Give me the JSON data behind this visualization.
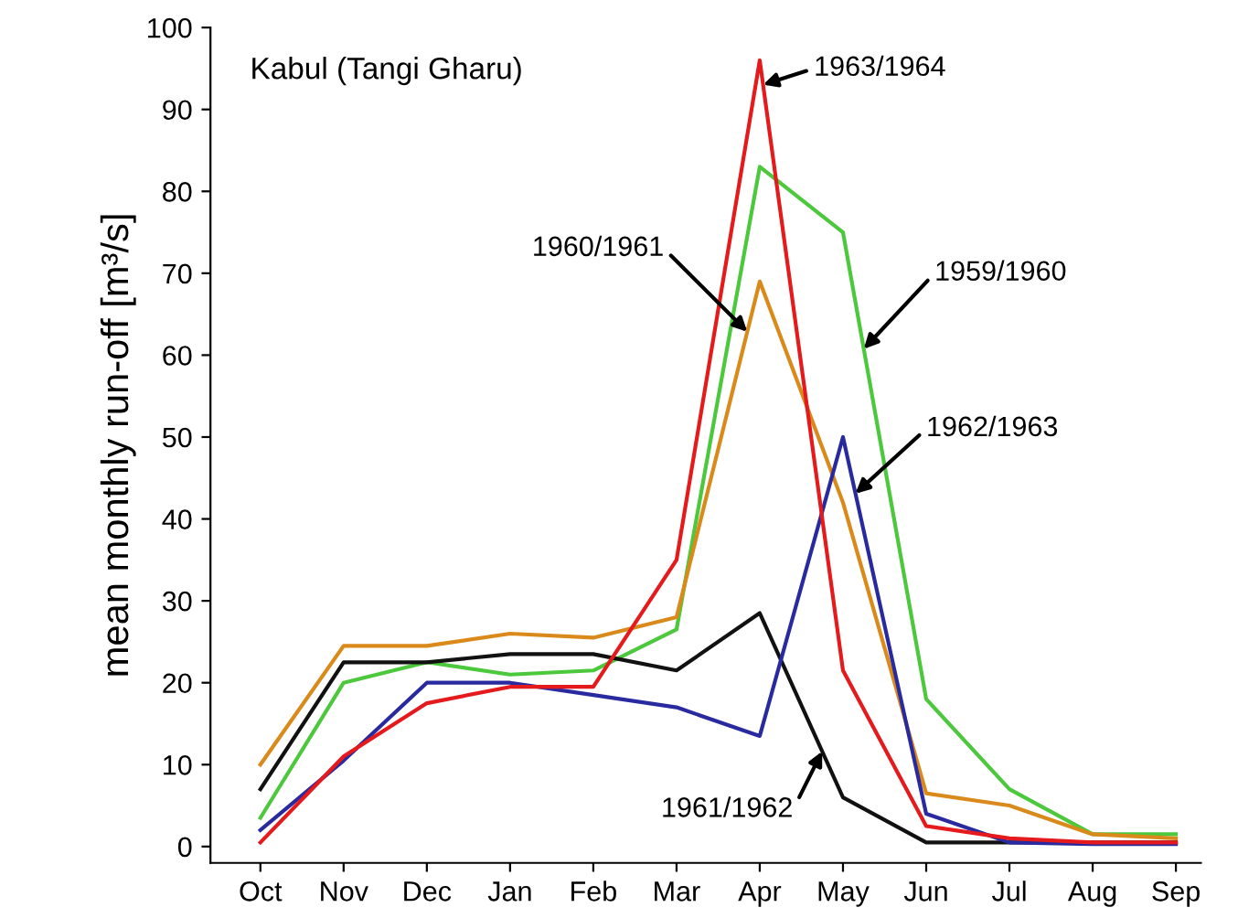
{
  "chart_data": {
    "type": "line",
    "title": "Kabul (Tangi Gharu)",
    "ylabel": "mean monthly run-off [m³/s]",
    "categories": [
      "Oct",
      "Nov",
      "Dec",
      "Jan",
      "Feb",
      "Mar",
      "Apr",
      "May",
      "Jun",
      "Jul",
      "Aug",
      "Sep"
    ],
    "series": [
      {
        "name": "1959/1960",
        "color": "#4cc83c",
        "values": [
          3.5,
          20,
          22.5,
          21,
          21.5,
          26.5,
          83,
          75,
          18,
          7,
          1.5,
          1.5
        ]
      },
      {
        "name": "1960/1961",
        "color": "#d98a1a",
        "values": [
          10,
          24.5,
          24.5,
          26,
          25.5,
          28,
          69,
          42,
          6.5,
          5,
          1.5,
          1
        ]
      },
      {
        "name": "1961/1962",
        "color": "#111111",
        "values": [
          7,
          22.5,
          22.5,
          23.5,
          23.5,
          21.5,
          28.5,
          6,
          0.5,
          0.5,
          0.5,
          0.5
        ]
      },
      {
        "name": "1962/1963",
        "color": "#2a2aa0",
        "values": [
          2,
          10.5,
          20,
          20,
          18.5,
          17,
          13.5,
          50,
          4,
          0.5,
          0.3,
          0.3
        ]
      },
      {
        "name": "1963/1964",
        "color": "#e41a1c",
        "values": [
          0.5,
          11,
          17.5,
          19.5,
          19.5,
          35,
          96,
          21.5,
          2.5,
          1,
          0.5,
          0.5
        ]
      }
    ],
    "ylim": [
      -2,
      100
    ],
    "yticks": [
      0,
      10,
      20,
      30,
      40,
      50,
      60,
      70,
      80,
      90,
      100
    ],
    "grid": false,
    "legend": false,
    "marker": "none",
    "line_style": "solid"
  }
}
